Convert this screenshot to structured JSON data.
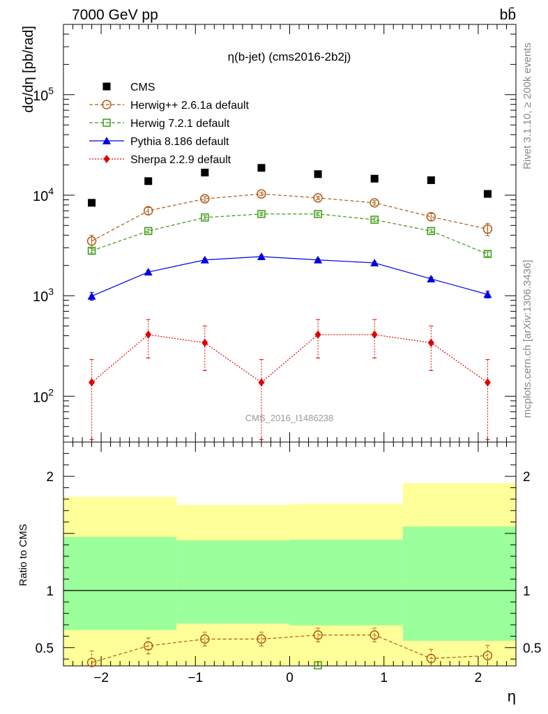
{
  "header": {
    "energy_label": "7000 GeV pp",
    "process_label": "bb̄",
    "rivet_label": "Rivet 3.1.10, ≥ 200k events",
    "mcplots_label": "mcplots.cern.ch [arXiv:1306.3436]",
    "watermark": "CMS_2016_I1486238"
  },
  "chart_data": [
    {
      "type": "line",
      "title": "η(b-jet) (cms2016-2b2j)",
      "ylabel": "dσ/dη [pb/rad]",
      "xlabel": "",
      "yscale": "log",
      "xlim": [
        -2.4,
        2.4
      ],
      "ylim": [
        35,
        500000
      ],
      "y_ticks": [
        100,
        1000,
        10000,
        100000
      ],
      "y_tick_labels": [
        [
          "10",
          "2"
        ],
        [
          "10",
          "3"
        ],
        [
          "10",
          "4"
        ],
        [
          "10",
          "5"
        ]
      ],
      "legend_position": "top-left",
      "x": [
        -2.1,
        -1.5,
        -0.9,
        -0.3,
        0.3,
        0.9,
        1.5,
        2.1
      ],
      "series": [
        {
          "name": "CMS",
          "color": "#000000",
          "marker": "square-filled",
          "line": "none",
          "values": [
            8400,
            13800,
            16800,
            18700,
            16200,
            14600,
            14100,
            10300
          ]
        },
        {
          "name": "Herwig++ 2.6.1a default",
          "color": "#b05a14",
          "marker": "circle-open",
          "line": "dashed",
          "values": [
            3500,
            7000,
            9200,
            10300,
            9400,
            8400,
            6100,
            4600
          ],
          "err": [
            0.14,
            0.08,
            0.05,
            0.04,
            0.04,
            0.05,
            0.08,
            0.14
          ]
        },
        {
          "name": "Herwig 7.2.1 default",
          "color": "#3a9a14",
          "marker": "square-open",
          "line": "dashed",
          "values": [
            2800,
            4400,
            6000,
            6500,
            6500,
            5700,
            4400,
            2600
          ],
          "err": [
            0.05,
            0.04,
            0.04,
            0.04,
            0.04,
            0.04,
            0.04,
            0.05
          ]
        },
        {
          "name": "Pythia 8.186 default",
          "color": "#0000e0",
          "marker": "triangle-filled",
          "line": "solid",
          "values": [
            990,
            1720,
            2270,
            2450,
            2270,
            2120,
            1470,
            1030
          ],
          "err": [
            0.09,
            0.04,
            0.03,
            0.03,
            0.03,
            0.03,
            0.04,
            0.08
          ]
        },
        {
          "name": "Sherpa 2.2.9 default",
          "color": "#e00000",
          "marker": "diamond-filled",
          "line": "dotted",
          "values": [
            137,
            410,
            340,
            137,
            410,
            410,
            340,
            137
          ],
          "err_lo": [
            100,
            170,
            160,
            100,
            170,
            170,
            160,
            100
          ],
          "err_hi": [
            95,
            170,
            160,
            95,
            170,
            170,
            160,
            95
          ]
        }
      ]
    },
    {
      "type": "line",
      "ylabel": "Ratio to CMS",
      "xlabel": "η",
      "xlim": [
        -2.4,
        2.4
      ],
      "ylim": [
        0.34,
        2.3
      ],
      "x_ticks": [
        -2,
        -1,
        0,
        1,
        2
      ],
      "x_tick_labels": [
        "−2",
        "−1",
        "0",
        "1",
        "2"
      ],
      "y_ticks": [
        0.5,
        1,
        2
      ],
      "y_tick_labels": [
        "0.5",
        "1",
        "2"
      ],
      "bands": [
        {
          "x_lo": -2.4,
          "x_hi": -1.2,
          "inner": [
            0.655,
            1.47
          ],
          "outer": [
            0.34,
            1.82
          ]
        },
        {
          "x_lo": -1.2,
          "x_hi": 0.0,
          "inner": [
            0.71,
            1.44
          ],
          "outer": [
            0.34,
            1.75
          ]
        },
        {
          "x_lo": 0.0,
          "x_hi": 1.2,
          "inner": [
            0.695,
            1.445
          ],
          "outer": [
            0.34,
            1.76
          ]
        },
        {
          "x_lo": 1.2,
          "x_hi": 2.4,
          "inner": [
            0.56,
            1.56
          ],
          "outer": [
            0.34,
            1.94
          ]
        }
      ],
      "band_colors": {
        "inner": "#9bff9b",
        "outer": "#ffff99"
      },
      "reference": 1,
      "x": [
        -2.1,
        -1.5,
        -0.9,
        -0.3,
        0.3,
        0.9,
        1.5,
        2.1
      ],
      "series": [
        {
          "name": "Herwig++ 2.6.1a default",
          "color": "#b05a14",
          "marker": "circle-open",
          "line": "dashed",
          "values": [
            0.37,
            0.515,
            0.575,
            0.575,
            0.61,
            0.61,
            0.405,
            0.43
          ],
          "err": [
            0.1,
            0.07,
            0.06,
            0.06,
            0.06,
            0.06,
            0.08,
            0.09
          ]
        },
        {
          "name": "Herwig 7.2.1 default",
          "color": "#3a9a14",
          "marker": "square-open",
          "line": "none",
          "values": [
            null,
            null,
            null,
            null,
            0.345,
            null,
            null,
            null
          ]
        }
      ]
    }
  ]
}
